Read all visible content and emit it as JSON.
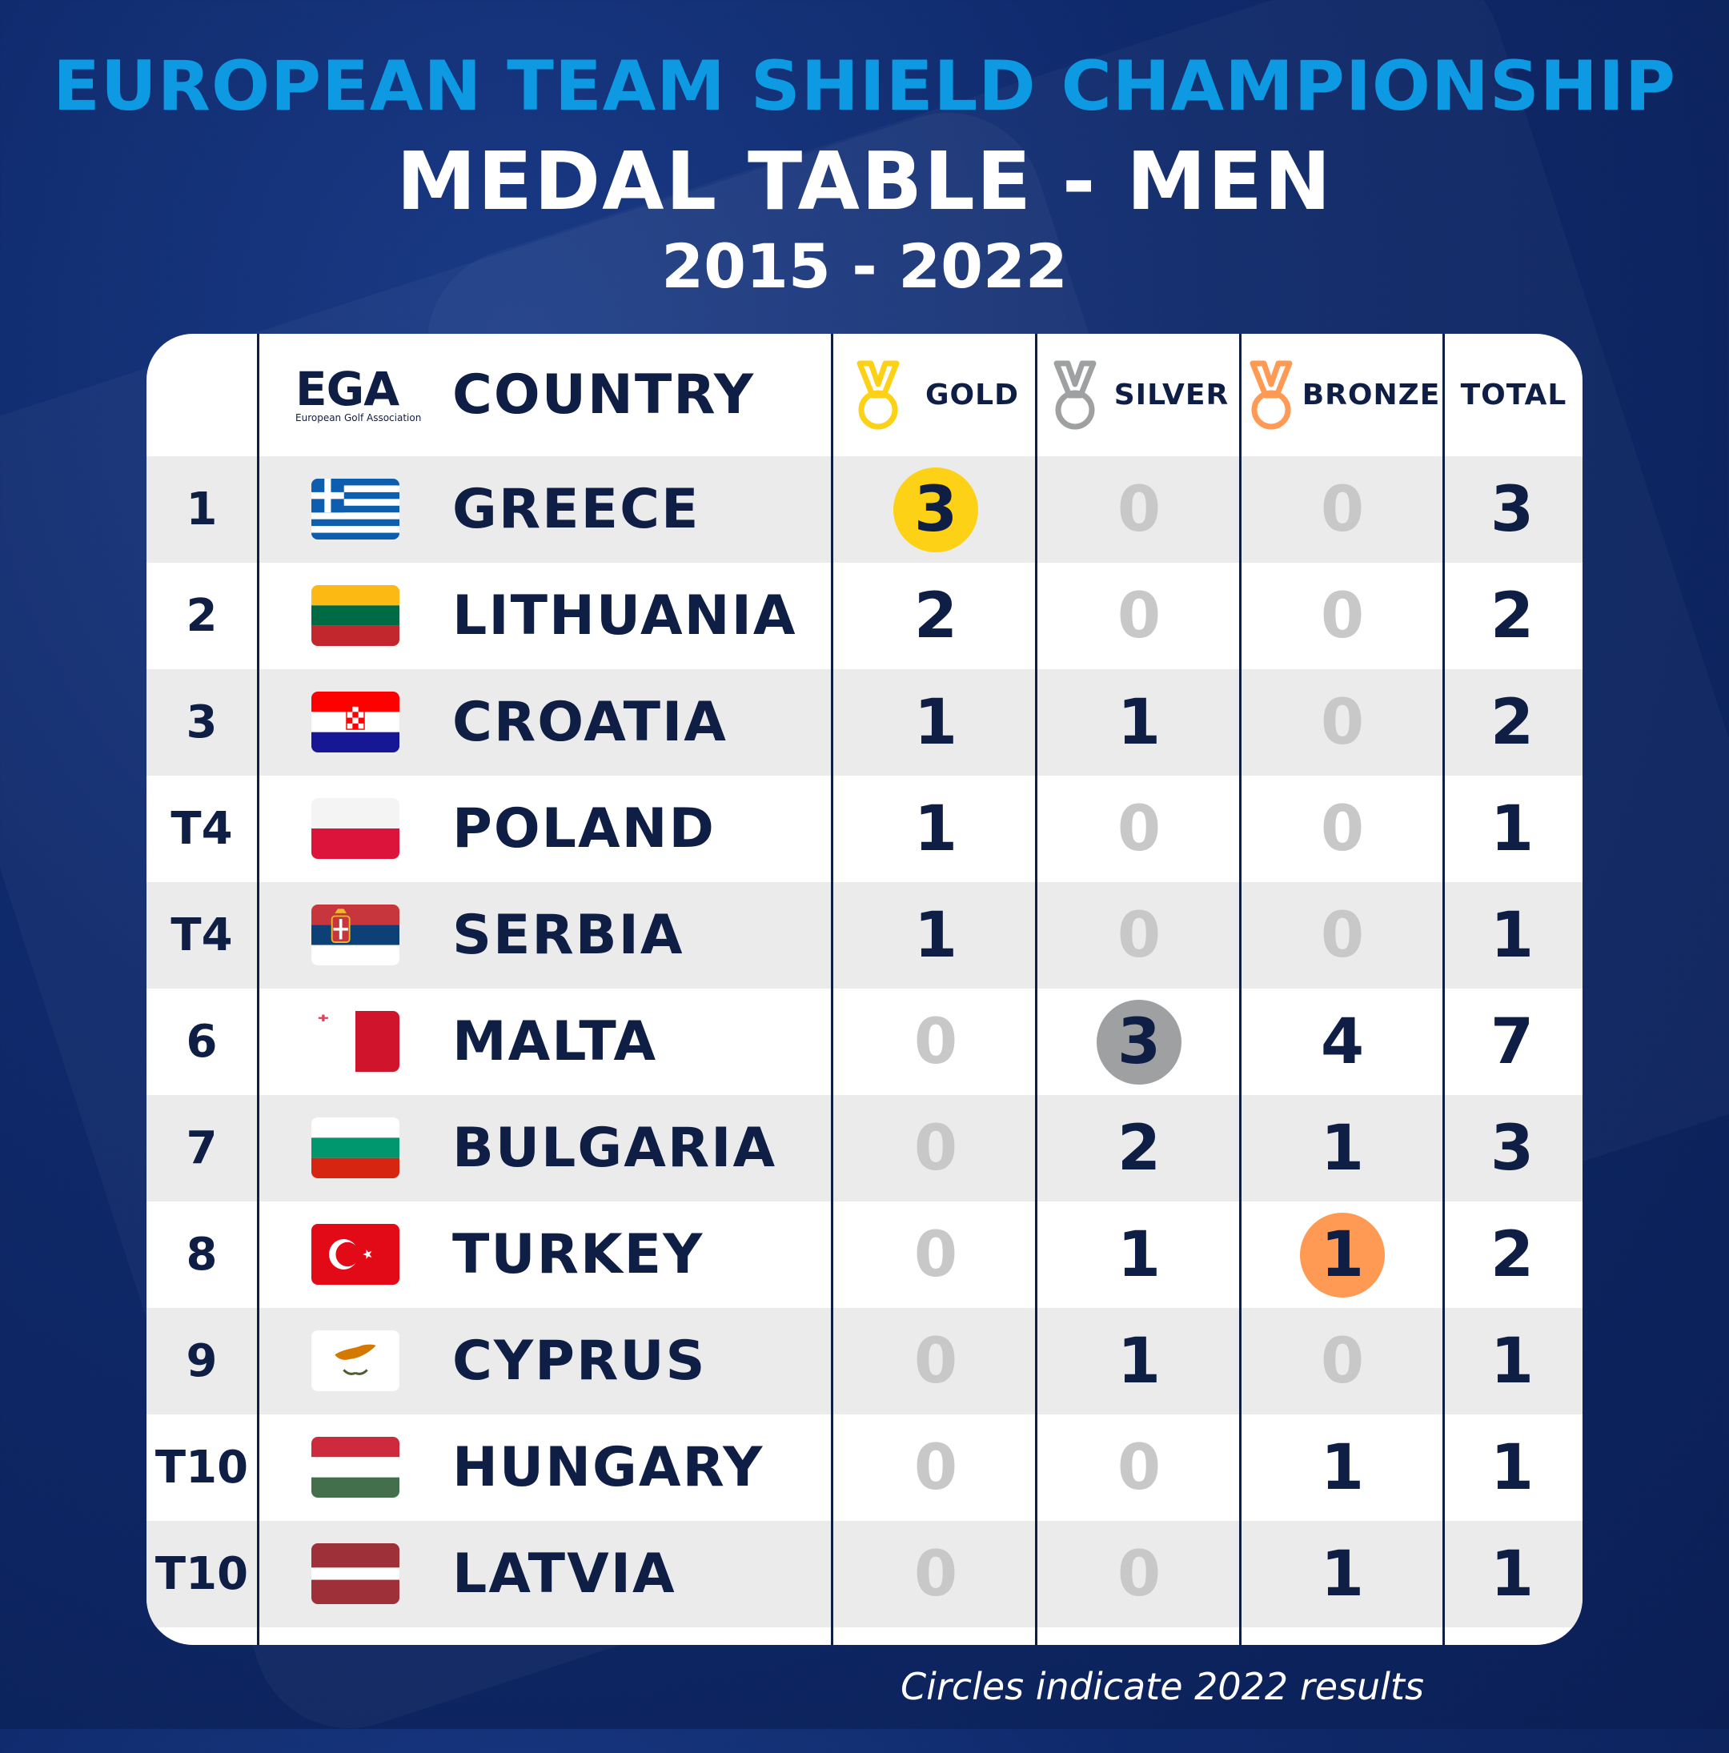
{
  "header": {
    "line1": "EUROPEAN TEAM SHIELD CHAMPIONSHIP",
    "line2": "MEDAL TABLE - MEN",
    "line3": "2015 - 2022"
  },
  "logo": {
    "text": "EGA",
    "subtext": "European Golf Association"
  },
  "columns": {
    "country": "COUNTRY",
    "gold": "GOLD",
    "silver": "SILVER",
    "bronze": "BRONZE",
    "total": "TOTAL"
  },
  "colors": {
    "gold": "#fcd116",
    "silver": "#9fa0a2",
    "bronze": "#ff9a55",
    "accent_blue": "#0d9ae3",
    "navy": "#0f1e45",
    "zero": "#c8c8c8"
  },
  "rows": [
    {
      "rank": "1",
      "country": "GREECE",
      "flag": "greece-flag",
      "gold": "3",
      "silver": "0",
      "bronze": "0",
      "total": "3",
      "circle": "gold"
    },
    {
      "rank": "2",
      "country": "LITHUANIA",
      "flag": "lithuania-flag",
      "gold": "2",
      "silver": "0",
      "bronze": "0",
      "total": "2",
      "circle": ""
    },
    {
      "rank": "3",
      "country": "CROATIA",
      "flag": "croatia-flag",
      "gold": "1",
      "silver": "1",
      "bronze": "0",
      "total": "2",
      "circle": ""
    },
    {
      "rank": "T4",
      "country": "POLAND",
      "flag": "poland-flag",
      "gold": "1",
      "silver": "0",
      "bronze": "0",
      "total": "1",
      "circle": ""
    },
    {
      "rank": "T4",
      "country": "SERBIA",
      "flag": "serbia-flag",
      "gold": "1",
      "silver": "0",
      "bronze": "0",
      "total": "1",
      "circle": ""
    },
    {
      "rank": "6",
      "country": "MALTA",
      "flag": "malta-flag",
      "gold": "0",
      "silver": "3",
      "bronze": "4",
      "total": "7",
      "circle": "silver"
    },
    {
      "rank": "7",
      "country": "BULGARIA",
      "flag": "bulgaria-flag",
      "gold": "0",
      "silver": "2",
      "bronze": "1",
      "total": "3",
      "circle": ""
    },
    {
      "rank": "8",
      "country": "TURKEY",
      "flag": "turkey-flag",
      "gold": "0",
      "silver": "1",
      "bronze": "1",
      "total": "2",
      "circle": "bronze"
    },
    {
      "rank": "9",
      "country": "CYPRUS",
      "flag": "cyprus-flag",
      "gold": "0",
      "silver": "1",
      "bronze": "0",
      "total": "1",
      "circle": ""
    },
    {
      "rank": "T10",
      "country": "HUNGARY",
      "flag": "hungary-flag",
      "gold": "0",
      "silver": "0",
      "bronze": "1",
      "total": "1",
      "circle": ""
    },
    {
      "rank": "T10",
      "country": "LATVIA",
      "flag": "latvia-flag",
      "gold": "0",
      "silver": "0",
      "bronze": "1",
      "total": "1",
      "circle": ""
    }
  ],
  "footnote": "Circles indicate 2022 results"
}
